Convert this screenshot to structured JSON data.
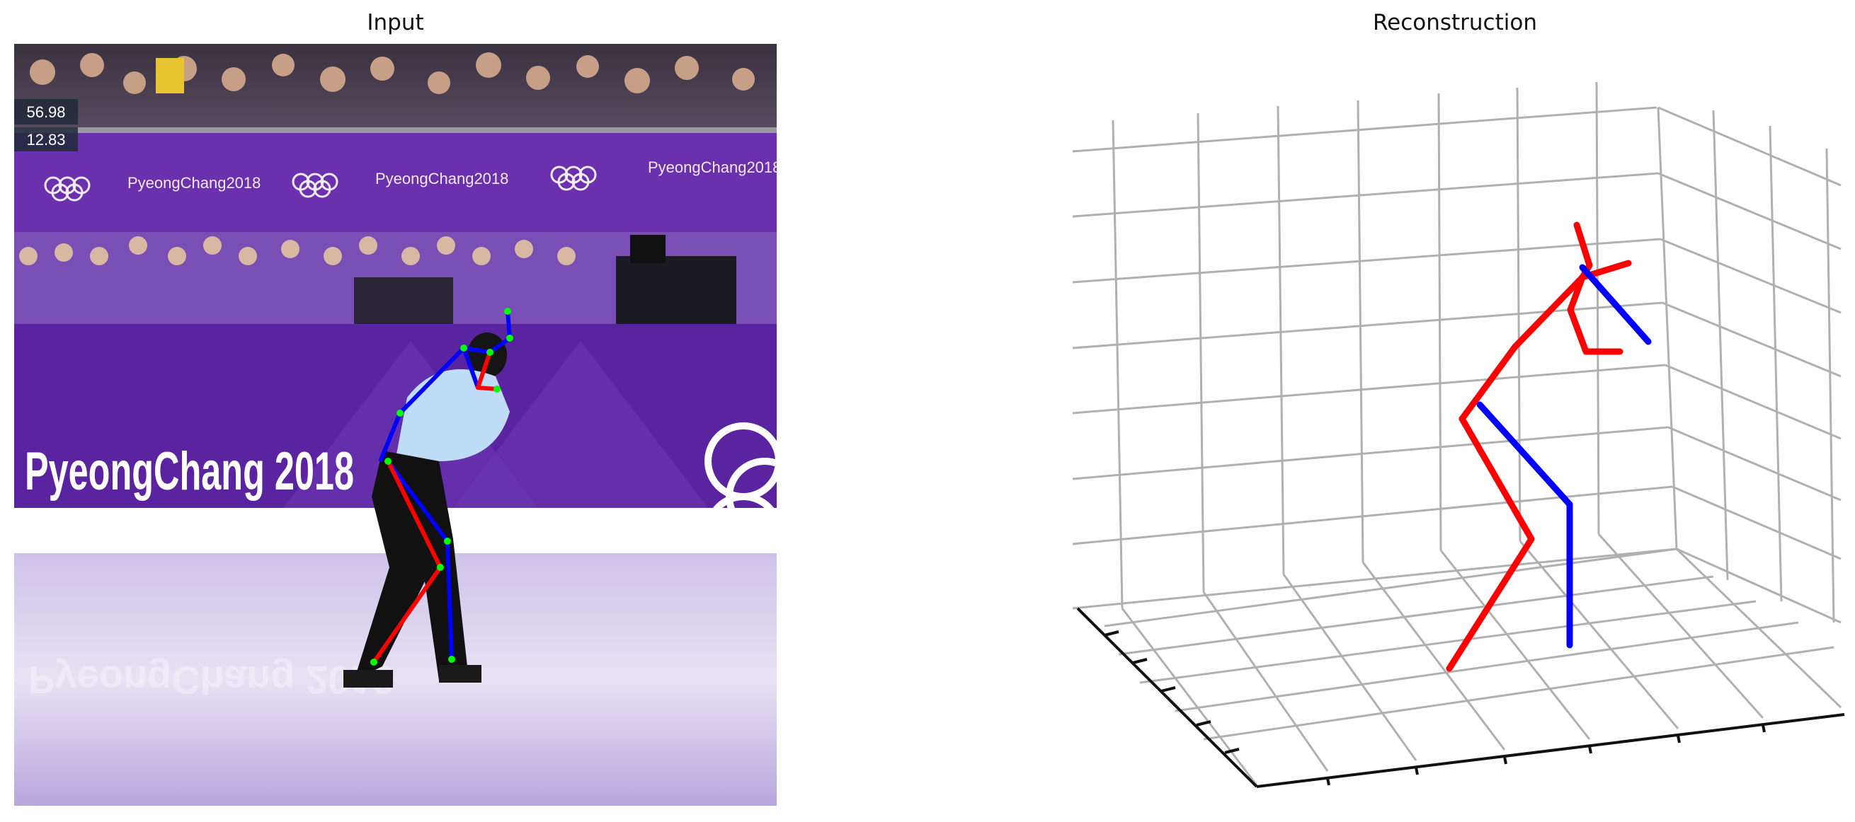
{
  "panels": {
    "left_title": "Input",
    "right_title": "Reconstruction"
  },
  "scoreboard": {
    "score_total": "56.98",
    "score_element": "12.83"
  },
  "banner": {
    "brand_large": "PyeongChang 2018",
    "brand_small": "PyeongChang2018"
  },
  "colors": {
    "board_purple": "#6a2fa8",
    "board_purple_dark": "#4f1f8c",
    "ice": "#e9e3f5",
    "crowd": "#2b2438",
    "skeleton_left": "#ff0000",
    "skeleton_right": "#0000ff",
    "joint": "#00ff00",
    "grid": "#b0b0b0"
  }
}
